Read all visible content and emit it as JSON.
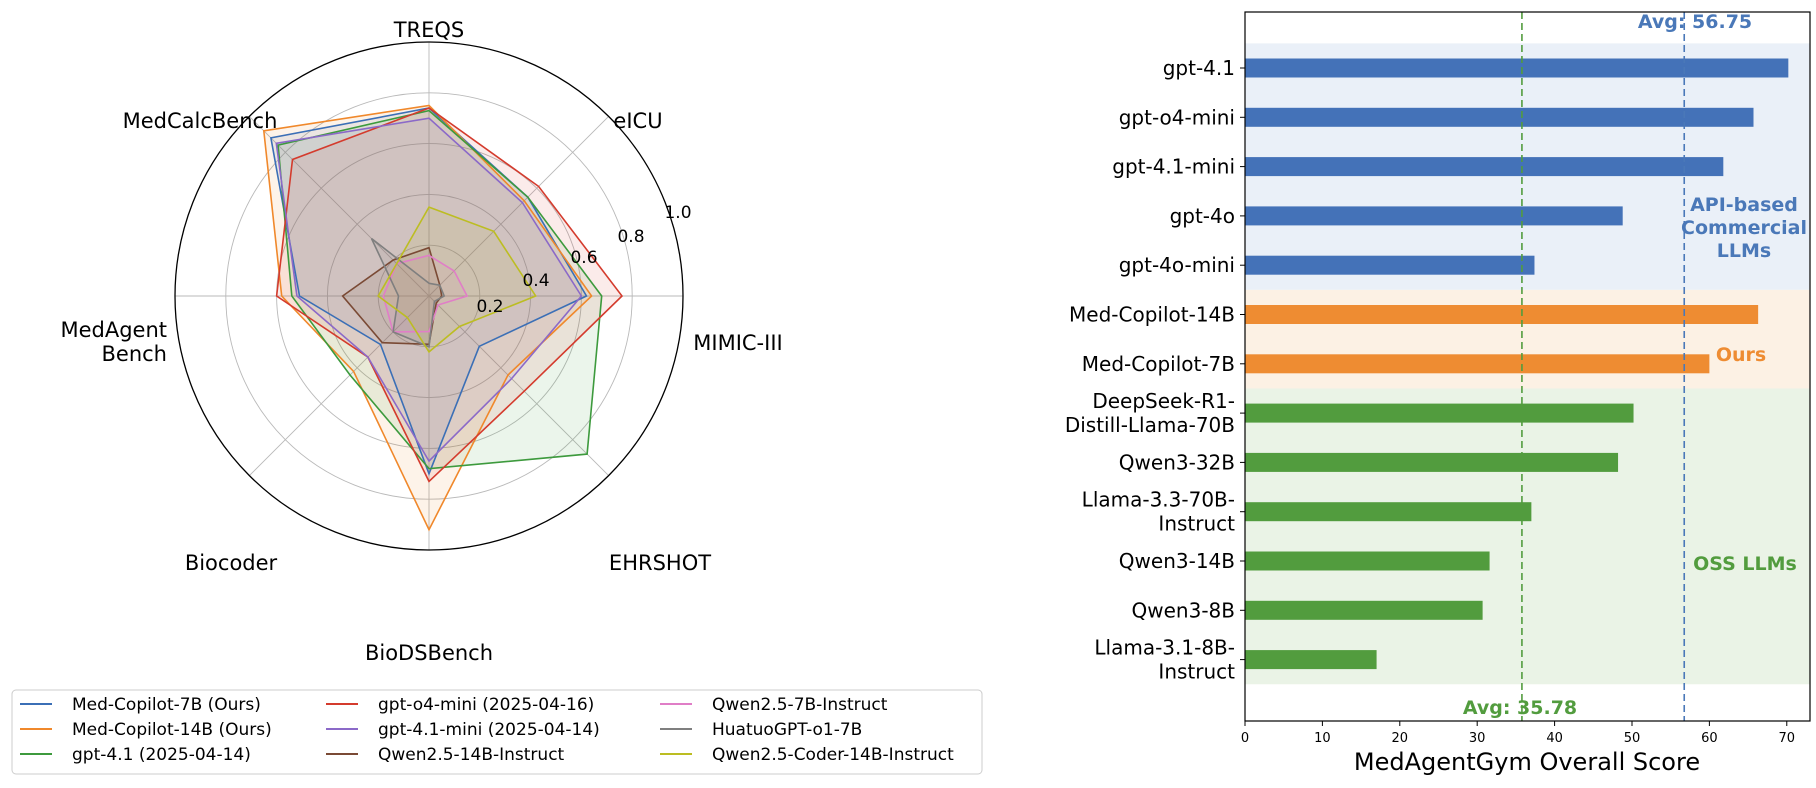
{
  "chart_data": [
    {
      "type": "radar",
      "axes": [
        "TREQS",
        "eICU",
        "MIMIC-III",
        "EHRSHOT",
        "BioDSBench",
        "Biocoder",
        "MedAgent\nBench",
        "MedCalcBench"
      ],
      "rlim": [
        0,
        1.0
      ],
      "radial_ticks": [
        "0.2",
        "0.4",
        "0.6",
        "0.8",
        "1.0"
      ],
      "legend_placement": "bottom",
      "series": [
        {
          "name": "Med-Copilot-7B (Ours)",
          "color": "#3b6fb6",
          "values": [
            0.74,
            0.55,
            0.62,
            0.28,
            0.7,
            0.27,
            0.51,
            0.88
          ]
        },
        {
          "name": "Med-Copilot-14B (Ours)",
          "color": "#f0882b",
          "values": [
            0.75,
            0.53,
            0.64,
            0.44,
            0.92,
            0.42,
            0.58,
            0.92
          ]
        },
        {
          "name": "gpt-4.1 (2025-04-14)",
          "color": "#3d9a3d",
          "values": [
            0.73,
            0.55,
            0.68,
            0.88,
            0.68,
            0.44,
            0.54,
            0.84
          ]
        },
        {
          "name": "gpt-o4-mini (2025-04-16)",
          "color": "#d43b2d",
          "values": [
            0.74,
            0.61,
            0.76,
            0.53,
            0.73,
            0.34,
            0.6,
            0.76
          ]
        },
        {
          "name": "gpt-4.1-mini (2025-04-14)",
          "color": "#8b69c8",
          "values": [
            0.7,
            0.52,
            0.6,
            0.46,
            0.65,
            0.34,
            0.52,
            0.85
          ]
        },
        {
          "name": "Qwen2.5-14B-Instruct",
          "color": "#7a4a35",
          "values": [
            0.19,
            0.06,
            0.05,
            0.04,
            0.19,
            0.26,
            0.34,
            0.2
          ]
        },
        {
          "name": "Qwen2.5-7B-Instruct",
          "color": "#e07ec7",
          "values": [
            0.16,
            0.14,
            0.15,
            0.05,
            0.14,
            0.2,
            0.18,
            0.18
          ]
        },
        {
          "name": "HuatuoGPT-o1-7B",
          "color": "#7f7f7f",
          "values": [
            0.05,
            0.06,
            0.06,
            0.03,
            0.2,
            0.2,
            0.12,
            0.32
          ]
        },
        {
          "name": "Qwen2.5-Coder-14B-Instruct",
          "color": "#bcbd22",
          "values": [
            0.35,
            0.36,
            0.42,
            0.17,
            0.22,
            0.12,
            0.2,
            0.18
          ]
        }
      ]
    },
    {
      "type": "bar",
      "orientation": "horizontal",
      "categories": [
        "gpt-4.1",
        "gpt-o4-mini",
        "gpt-4.1-mini",
        "gpt-4o",
        "gpt-4o-mini",
        "Med-Copilot-14B",
        "Med-Copilot-7B",
        "DeepSeek-R1-\nDistill-Llama-70B",
        "Qwen3-32B",
        "Llama-3.3-70B-\nInstruct",
        "Qwen3-14B",
        "Qwen3-8B",
        "Llama-3.1-8B-\nInstruct"
      ],
      "values": [
        70.2,
        65.7,
        61.8,
        48.8,
        37.4,
        66.3,
        60.0,
        50.2,
        48.2,
        37.0,
        31.6,
        30.7,
        17.0
      ],
      "groups": [
        {
          "label": "API-based\nCommercial\nLLMs",
          "members": [
            0,
            1,
            2,
            3,
            4
          ],
          "bar_color": "#4472b8",
          "band_color": "#eaf0f8",
          "label_color": "#4a78b8"
        },
        {
          "label": "Ours",
          "members": [
            5,
            6
          ],
          "bar_color": "#ee8c32",
          "band_color": "#fcf1e4",
          "label_color": "#ee8c32"
        },
        {
          "label": "OSS LLMs",
          "members": [
            7,
            8,
            9,
            10,
            11,
            12
          ],
          "bar_color": "#529c3e",
          "band_color": "#eaf3e6",
          "label_color": "#529c3e"
        }
      ],
      "reference_lines": [
        {
          "value": 56.75,
          "label": "Avg: 56.75",
          "color": "#4a78b8"
        },
        {
          "value": 35.78,
          "label": "Avg: 35.78",
          "color": "#529c3e"
        }
      ],
      "xlabel": "MedAgentGym Overall Score",
      "xlim": [
        0,
        73
      ],
      "xticks": [
        0,
        10,
        20,
        30,
        40,
        50,
        60,
        70
      ]
    }
  ]
}
